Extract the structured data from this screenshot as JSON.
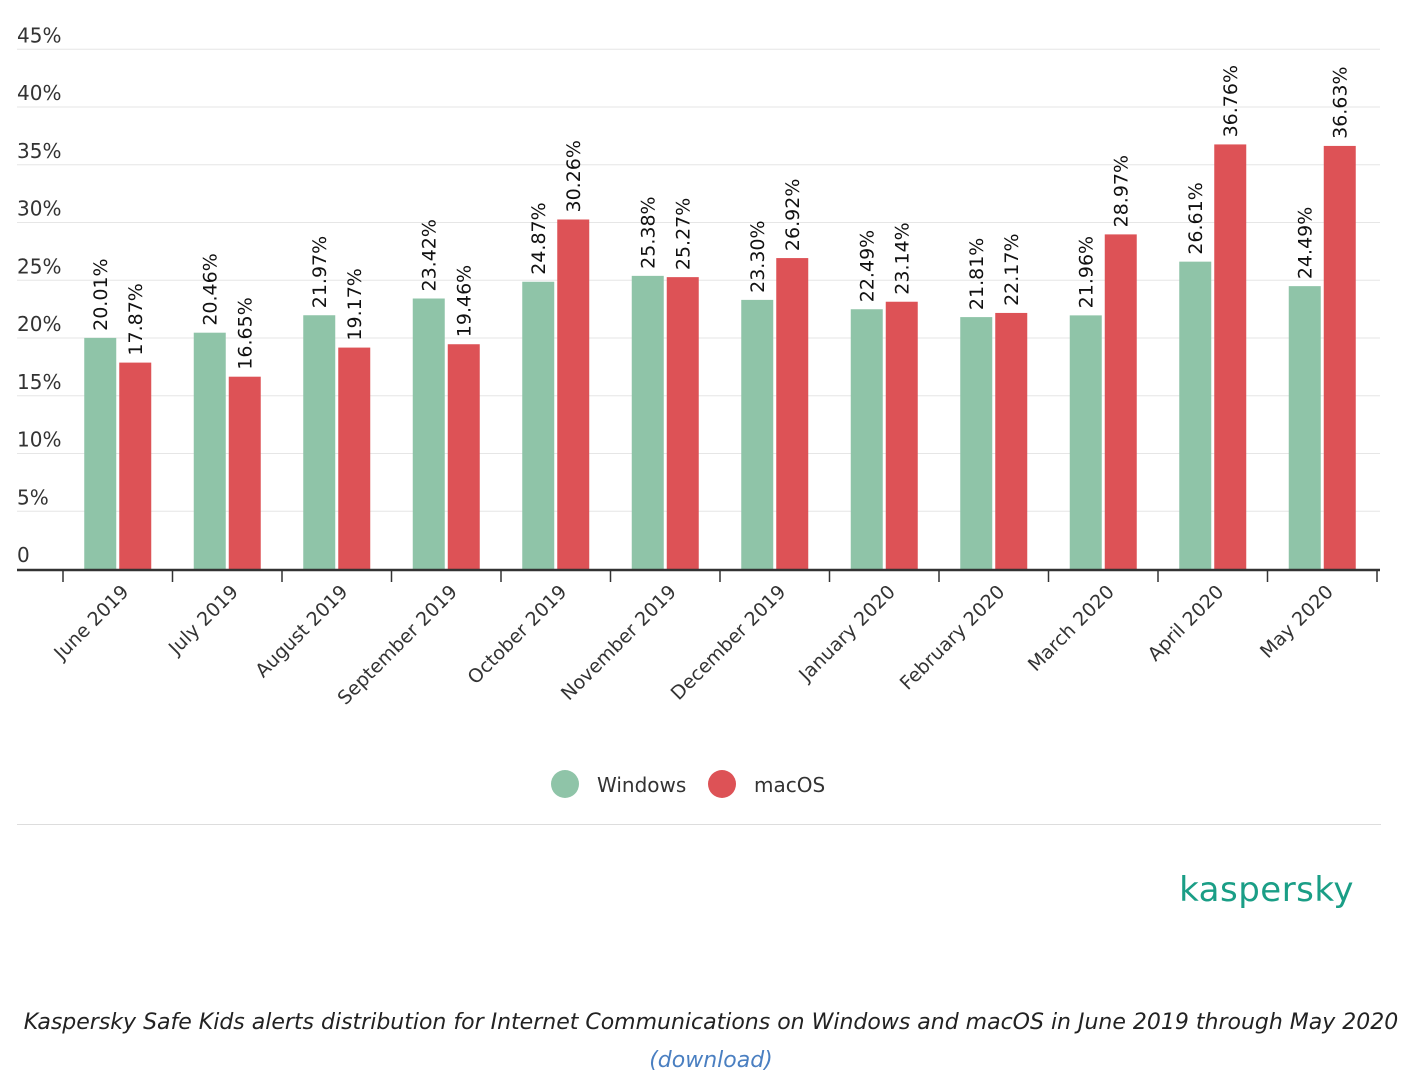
{
  "colors": {
    "windows": "#8fc4a8",
    "macos": "#dd5256",
    "brand": "#1a9e86",
    "link": "#4a7fc1",
    "grid": "#e6e6e6",
    "axis": "#333333"
  },
  "chart_data": {
    "type": "bar",
    "categories": [
      "June 2019",
      "July 2019",
      "August 2019",
      "September 2019",
      "October 2019",
      "November 2019",
      "December 2019",
      "January 2020",
      "February 2020",
      "March 2020",
      "April 2020",
      "May 2020"
    ],
    "series": [
      {
        "name": "Windows",
        "values": [
          20.01,
          20.46,
          21.97,
          23.42,
          24.87,
          25.38,
          23.3,
          22.49,
          21.81,
          21.96,
          26.61,
          24.49
        ],
        "labels": [
          "20.01%",
          "20.46%",
          "21.97%",
          "23.42%",
          "24.87%",
          "25.38%",
          "23.30%",
          "22.49%",
          "21.81%",
          "21.96%",
          "26.61%",
          "24.49%"
        ]
      },
      {
        "name": "macOS",
        "values": [
          17.87,
          16.65,
          19.17,
          19.46,
          30.26,
          25.27,
          26.92,
          23.14,
          22.17,
          28.97,
          36.76,
          36.63
        ],
        "labels": [
          "17.87%",
          "16.65%",
          "19.17%",
          "19.46%",
          "30.26%",
          "25.27%",
          "26.92%",
          "23.14%",
          "22.17%",
          "28.97%",
          "36.76%",
          "36.63%"
        ]
      }
    ],
    "yticks": [
      0,
      5,
      10,
      15,
      20,
      25,
      30,
      35,
      40,
      45
    ],
    "ytick_labels": [
      "0",
      "5%",
      "10%",
      "15%",
      "20%",
      "25%",
      "30%",
      "35%",
      "40%",
      "45%"
    ],
    "ylim": [
      0,
      45
    ],
    "grid": true,
    "legend": "bottom-center"
  },
  "logo": {
    "text": "kaspersky"
  },
  "caption": {
    "text": "Kaspersky Safe Kids alerts distribution for Internet Communications on Windows and macOS in June 2019 through May 2020",
    "link_text": "(download)"
  }
}
